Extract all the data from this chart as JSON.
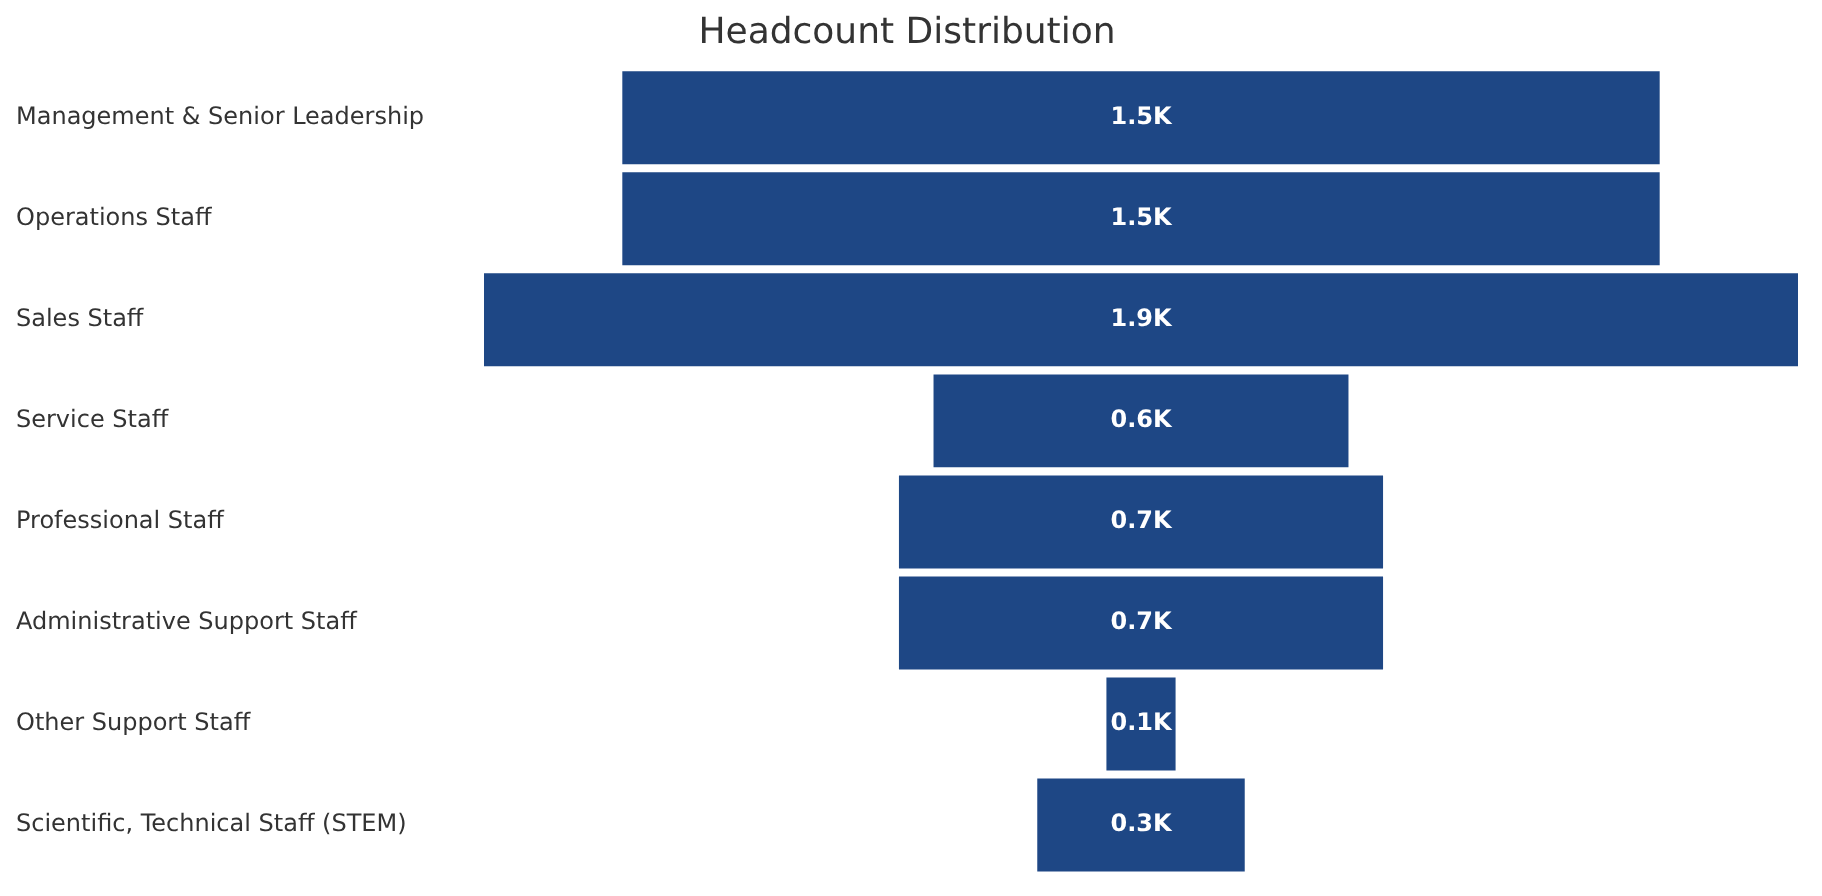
{
  "chart_data": {
    "type": "other",
    "title": "Headcount Distribution",
    "categories": [
      "Management & Senior Leadership",
      "Operations Staff",
      "Sales Staff",
      "Service Staff",
      "Professional Staff",
      "Administrative Support Staff",
      "Other Support Staff",
      "Scientific, Technical Staff (STEM)"
    ],
    "values": [
      1.5,
      1.5,
      1.9,
      0.6,
      0.7,
      0.7,
      0.1,
      0.3
    ],
    "value_labels": [
      "1.5K",
      "1.5K",
      "1.9K",
      "0.6K",
      "0.7K",
      "0.7K",
      "0.1K",
      "0.3K"
    ],
    "color": "#1e4785"
  }
}
